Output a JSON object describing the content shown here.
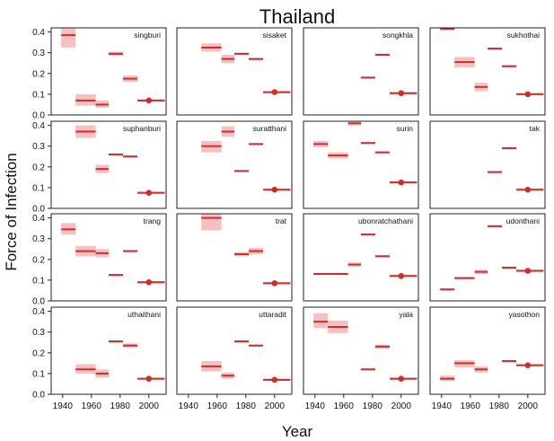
{
  "chart_data": {
    "type": "scatter",
    "title": "Thailand",
    "xlabel": "Year",
    "ylabel": "Force of Infection",
    "xlim": [
      1932,
      2012
    ],
    "ylim": [
      0,
      0.42
    ],
    "x_ticks": [
      "1940",
      "1960",
      "1980",
      "2000"
    ],
    "y_ticks": [
      "0.0",
      "0.1",
      "0.2",
      "0.3",
      "0.4"
    ],
    "colors": {
      "estimate": "#d42a2a",
      "interval": "#f4c0c0"
    },
    "panels": [
      {
        "name": "singburi",
        "segments": [
          {
            "x0": 1939,
            "x1": 1949,
            "y": 0.385,
            "lo": 0.325,
            "hi": 0.42
          },
          {
            "x0": 1949,
            "x1": 1963,
            "y": 0.07,
            "lo": 0.045,
            "hi": 0.1
          },
          {
            "x0": 1963,
            "x1": 1972,
            "y": 0.05,
            "lo": 0.035,
            "hi": 0.07
          },
          {
            "x0": 1972,
            "x1": 1982,
            "y": 0.295,
            "lo": 0.285,
            "hi": 0.305
          },
          {
            "x0": 1982,
            "x1": 1992,
            "y": 0.175,
            "lo": 0.16,
            "hi": 0.19
          },
          {
            "x0": 1992,
            "x1": 2011,
            "y": 0.07,
            "lo": 0.065,
            "hi": 0.075,
            "point": 2000
          }
        ]
      },
      {
        "name": "sisaket",
        "segments": [
          {
            "x0": 1949,
            "x1": 1963,
            "y": 0.325,
            "lo": 0.305,
            "hi": 0.345
          },
          {
            "x0": 1963,
            "x1": 1972,
            "y": 0.27,
            "lo": 0.25,
            "hi": 0.29
          },
          {
            "x0": 1972,
            "x1": 1982,
            "y": 0.295,
            "lo": 0.29,
            "hi": 0.3
          },
          {
            "x0": 1982,
            "x1": 1992,
            "y": 0.27,
            "lo": 0.265,
            "hi": 0.275
          },
          {
            "x0": 1992,
            "x1": 2011,
            "y": 0.11,
            "lo": 0.105,
            "hi": 0.115,
            "point": 2000
          }
        ]
      },
      {
        "name": "songkhla",
        "segments": [
          {
            "x0": 1972,
            "x1": 1982,
            "y": 0.18,
            "lo": 0.175,
            "hi": 0.185
          },
          {
            "x0": 1982,
            "x1": 1992,
            "y": 0.29,
            "lo": 0.285,
            "hi": 0.295
          },
          {
            "x0": 1992,
            "x1": 2011,
            "y": 0.105,
            "lo": 0.1,
            "hi": 0.11,
            "point": 2000
          }
        ]
      },
      {
        "name": "sukhothai",
        "segments": [
          {
            "x0": 1939,
            "x1": 1949,
            "y": 0.415,
            "lo": 0.41,
            "hi": 0.42
          },
          {
            "x0": 1949,
            "x1": 1963,
            "y": 0.255,
            "lo": 0.23,
            "hi": 0.28
          },
          {
            "x0": 1963,
            "x1": 1972,
            "y": 0.135,
            "lo": 0.115,
            "hi": 0.155
          },
          {
            "x0": 1972,
            "x1": 1982,
            "y": 0.32,
            "lo": 0.315,
            "hi": 0.325
          },
          {
            "x0": 1982,
            "x1": 1992,
            "y": 0.235,
            "lo": 0.23,
            "hi": 0.24
          },
          {
            "x0": 1992,
            "x1": 2011,
            "y": 0.1,
            "lo": 0.095,
            "hi": 0.105,
            "point": 2000
          }
        ]
      },
      {
        "name": "suphanburi",
        "segments": [
          {
            "x0": 1949,
            "x1": 1963,
            "y": 0.37,
            "lo": 0.34,
            "hi": 0.4
          },
          {
            "x0": 1963,
            "x1": 1972,
            "y": 0.19,
            "lo": 0.17,
            "hi": 0.21
          },
          {
            "x0": 1972,
            "x1": 1982,
            "y": 0.26,
            "lo": 0.255,
            "hi": 0.265
          },
          {
            "x0": 1982,
            "x1": 1992,
            "y": 0.25,
            "lo": 0.245,
            "hi": 0.255
          },
          {
            "x0": 1992,
            "x1": 2011,
            "y": 0.075,
            "lo": 0.07,
            "hi": 0.08,
            "point": 2000
          }
        ]
      },
      {
        "name": "suratthani",
        "segments": [
          {
            "x0": 1949,
            "x1": 1963,
            "y": 0.3,
            "lo": 0.27,
            "hi": 0.325
          },
          {
            "x0": 1963,
            "x1": 1972,
            "y": 0.37,
            "lo": 0.345,
            "hi": 0.395
          },
          {
            "x0": 1972,
            "x1": 1982,
            "y": 0.18,
            "lo": 0.175,
            "hi": 0.185
          },
          {
            "x0": 1982,
            "x1": 1992,
            "y": 0.31,
            "lo": 0.305,
            "hi": 0.315
          },
          {
            "x0": 1992,
            "x1": 2011,
            "y": 0.09,
            "lo": 0.085,
            "hi": 0.095,
            "point": 2000
          }
        ]
      },
      {
        "name": "surin",
        "segments": [
          {
            "x0": 1939,
            "x1": 1949,
            "y": 0.31,
            "lo": 0.295,
            "hi": 0.325
          },
          {
            "x0": 1949,
            "x1": 1963,
            "y": 0.255,
            "lo": 0.24,
            "hi": 0.27
          },
          {
            "x0": 1963,
            "x1": 1972,
            "y": 0.41,
            "lo": 0.4,
            "hi": 0.42
          },
          {
            "x0": 1972,
            "x1": 1982,
            "y": 0.315,
            "lo": 0.31,
            "hi": 0.32
          },
          {
            "x0": 1982,
            "x1": 1992,
            "y": 0.27,
            "lo": 0.265,
            "hi": 0.275
          },
          {
            "x0": 1992,
            "x1": 2011,
            "y": 0.125,
            "lo": 0.12,
            "hi": 0.13,
            "point": 2000
          }
        ]
      },
      {
        "name": "tak",
        "segments": [
          {
            "x0": 1972,
            "x1": 1982,
            "y": 0.175,
            "lo": 0.17,
            "hi": 0.18
          },
          {
            "x0": 1982,
            "x1": 1992,
            "y": 0.29,
            "lo": 0.285,
            "hi": 0.295
          },
          {
            "x0": 1992,
            "x1": 2011,
            "y": 0.09,
            "lo": 0.085,
            "hi": 0.095,
            "point": 2000
          }
        ]
      },
      {
        "name": "trang",
        "segments": [
          {
            "x0": 1939,
            "x1": 1949,
            "y": 0.345,
            "lo": 0.32,
            "hi": 0.375
          },
          {
            "x0": 1949,
            "x1": 1963,
            "y": 0.24,
            "lo": 0.215,
            "hi": 0.265
          },
          {
            "x0": 1963,
            "x1": 1972,
            "y": 0.23,
            "lo": 0.21,
            "hi": 0.25
          },
          {
            "x0": 1972,
            "x1": 1982,
            "y": 0.125,
            "lo": 0.12,
            "hi": 0.13
          },
          {
            "x0": 1982,
            "x1": 1992,
            "y": 0.24,
            "lo": 0.235,
            "hi": 0.245
          },
          {
            "x0": 1992,
            "x1": 2011,
            "y": 0.09,
            "lo": 0.085,
            "hi": 0.095,
            "point": 2000
          }
        ]
      },
      {
        "name": "trat",
        "segments": [
          {
            "x0": 1949,
            "x1": 1963,
            "y": 0.4,
            "lo": 0.34,
            "hi": 0.42
          },
          {
            "x0": 1972,
            "x1": 1982,
            "y": 0.225,
            "lo": 0.215,
            "hi": 0.235
          },
          {
            "x0": 1982,
            "x1": 1992,
            "y": 0.24,
            "lo": 0.225,
            "hi": 0.255
          },
          {
            "x0": 1992,
            "x1": 2011,
            "y": 0.085,
            "lo": 0.08,
            "hi": 0.09,
            "point": 2000
          }
        ]
      },
      {
        "name": "ubonratchathani",
        "segments": [
          {
            "x0": 1939,
            "x1": 1949,
            "y": 0.13,
            "lo": 0.125,
            "hi": 0.135
          },
          {
            "x0": 1949,
            "x1": 1963,
            "y": 0.13,
            "lo": 0.125,
            "hi": 0.135
          },
          {
            "x0": 1963,
            "x1": 1972,
            "y": 0.175,
            "lo": 0.165,
            "hi": 0.185
          },
          {
            "x0": 1972,
            "x1": 1982,
            "y": 0.32,
            "lo": 0.315,
            "hi": 0.325
          },
          {
            "x0": 1982,
            "x1": 1992,
            "y": 0.215,
            "lo": 0.21,
            "hi": 0.22
          },
          {
            "x0": 1992,
            "x1": 2011,
            "y": 0.12,
            "lo": 0.115,
            "hi": 0.125,
            "point": 2000
          }
        ]
      },
      {
        "name": "udonthani",
        "segments": [
          {
            "x0": 1939,
            "x1": 1949,
            "y": 0.055,
            "lo": 0.05,
            "hi": 0.06
          },
          {
            "x0": 1949,
            "x1": 1963,
            "y": 0.11,
            "lo": 0.105,
            "hi": 0.115
          },
          {
            "x0": 1963,
            "x1": 1972,
            "y": 0.14,
            "lo": 0.13,
            "hi": 0.15
          },
          {
            "x0": 1972,
            "x1": 1982,
            "y": 0.36,
            "lo": 0.355,
            "hi": 0.365
          },
          {
            "x0": 1982,
            "x1": 1992,
            "y": 0.16,
            "lo": 0.155,
            "hi": 0.165
          },
          {
            "x0": 1992,
            "x1": 2011,
            "y": 0.145,
            "lo": 0.14,
            "hi": 0.15,
            "point": 2000
          }
        ]
      },
      {
        "name": "uthaithani",
        "segments": [
          {
            "x0": 1949,
            "x1": 1963,
            "y": 0.12,
            "lo": 0.1,
            "hi": 0.145
          },
          {
            "x0": 1963,
            "x1": 1972,
            "y": 0.1,
            "lo": 0.08,
            "hi": 0.12
          },
          {
            "x0": 1972,
            "x1": 1982,
            "y": 0.255,
            "lo": 0.25,
            "hi": 0.26
          },
          {
            "x0": 1982,
            "x1": 1992,
            "y": 0.235,
            "lo": 0.225,
            "hi": 0.245
          },
          {
            "x0": 1992,
            "x1": 2011,
            "y": 0.075,
            "lo": 0.07,
            "hi": 0.08,
            "point": 2000
          }
        ]
      },
      {
        "name": "uttaradit",
        "segments": [
          {
            "x0": 1949,
            "x1": 1963,
            "y": 0.135,
            "lo": 0.11,
            "hi": 0.16
          },
          {
            "x0": 1963,
            "x1": 1972,
            "y": 0.09,
            "lo": 0.075,
            "hi": 0.105
          },
          {
            "x0": 1972,
            "x1": 1982,
            "y": 0.255,
            "lo": 0.25,
            "hi": 0.26
          },
          {
            "x0": 1982,
            "x1": 1992,
            "y": 0.235,
            "lo": 0.23,
            "hi": 0.24
          },
          {
            "x0": 1992,
            "x1": 2011,
            "y": 0.07,
            "lo": 0.065,
            "hi": 0.075,
            "point": 2000
          }
        ]
      },
      {
        "name": "yala",
        "segments": [
          {
            "x0": 1939,
            "x1": 1949,
            "y": 0.35,
            "lo": 0.32,
            "hi": 0.39
          },
          {
            "x0": 1949,
            "x1": 1963,
            "y": 0.325,
            "lo": 0.295,
            "hi": 0.355
          },
          {
            "x0": 1972,
            "x1": 1982,
            "y": 0.12,
            "lo": 0.115,
            "hi": 0.125
          },
          {
            "x0": 1982,
            "x1": 1992,
            "y": 0.23,
            "lo": 0.22,
            "hi": 0.24
          },
          {
            "x0": 1992,
            "x1": 2011,
            "y": 0.075,
            "lo": 0.07,
            "hi": 0.08,
            "point": 2000
          }
        ]
      },
      {
        "name": "yasothon",
        "segments": [
          {
            "x0": 1939,
            "x1": 1949,
            "y": 0.075,
            "lo": 0.065,
            "hi": 0.09
          },
          {
            "x0": 1949,
            "x1": 1963,
            "y": 0.15,
            "lo": 0.13,
            "hi": 0.165
          },
          {
            "x0": 1963,
            "x1": 1972,
            "y": 0.12,
            "lo": 0.105,
            "hi": 0.135
          },
          {
            "x0": 1982,
            "x1": 1992,
            "y": 0.16,
            "lo": 0.155,
            "hi": 0.165
          },
          {
            "x0": 1992,
            "x1": 2011,
            "y": 0.14,
            "lo": 0.135,
            "hi": 0.145,
            "point": 2000
          }
        ]
      }
    ]
  }
}
